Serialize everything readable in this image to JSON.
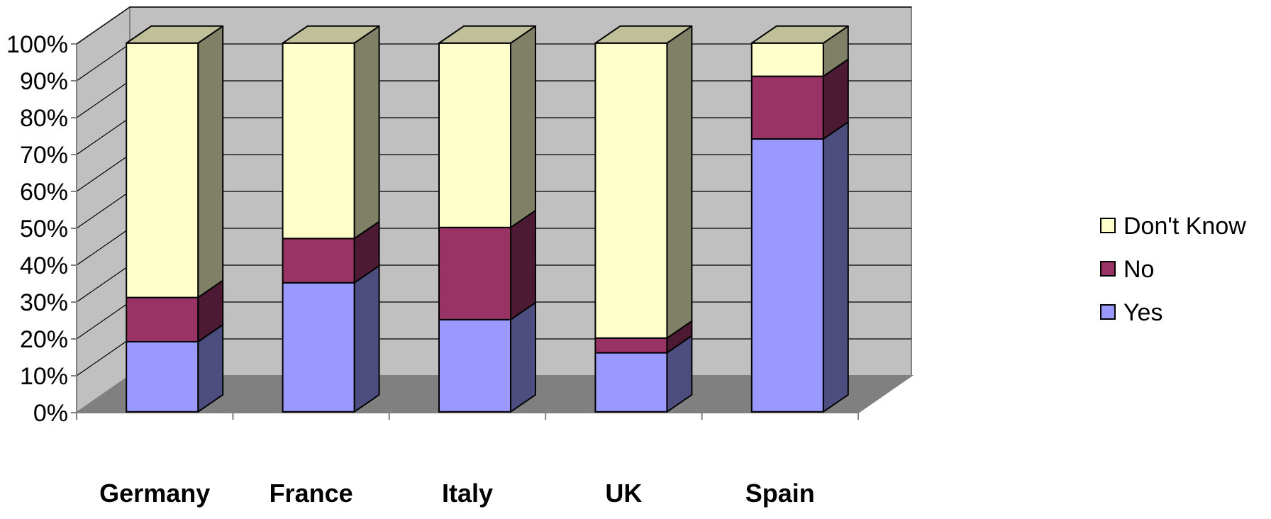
{
  "chart_data": {
    "type": "bar",
    "stacked": true,
    "three_d": true,
    "categories": [
      "Germany",
      "France",
      "Italy",
      "UK",
      "Spain"
    ],
    "series": [
      {
        "name": "Yes",
        "values": [
          19,
          35,
          25,
          16,
          74
        ],
        "color": "#9999ff"
      },
      {
        "name": "No",
        "values": [
          12,
          12,
          25,
          4,
          17
        ],
        "color": "#993366"
      },
      {
        "name": "Don't Know",
        "values": [
          69,
          53,
          50,
          80,
          9
        ],
        "color": "#ffffcc"
      }
    ],
    "y_ticks": [
      "0%",
      "10%",
      "20%",
      "30%",
      "40%",
      "50%",
      "60%",
      "70%",
      "80%",
      "90%",
      "100%"
    ],
    "ylim": [
      0,
      100
    ],
    "grid": true,
    "legend_position": "right",
    "legend_order": [
      "Don't Know",
      "No",
      "Yes"
    ]
  },
  "colors": {
    "back_wall": "#c0c0c0",
    "side_wall": "#c0c0c0",
    "floor": "#808080",
    "gridline": "#000000"
  }
}
